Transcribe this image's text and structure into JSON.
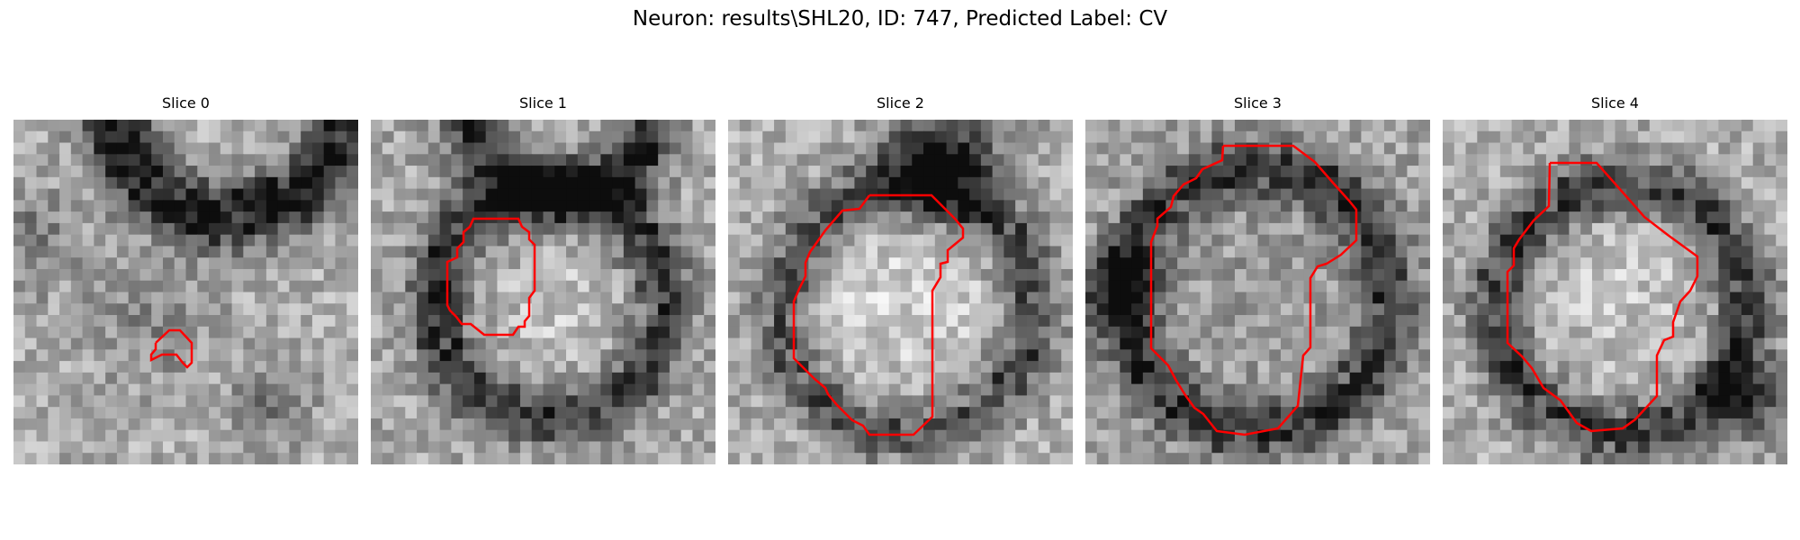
{
  "figure": {
    "title": "Neuron: results\\SHL20, ID: 747, Predicted Label: CV"
  },
  "panels": [
    {
      "title": "Slice 0"
    },
    {
      "title": "Slice 1"
    },
    {
      "title": "Slice 2"
    },
    {
      "title": "Slice 3"
    },
    {
      "title": "Slice 4"
    }
  ],
  "colors": {
    "contour": "#ff0000",
    "background": "#ffffff"
  }
}
